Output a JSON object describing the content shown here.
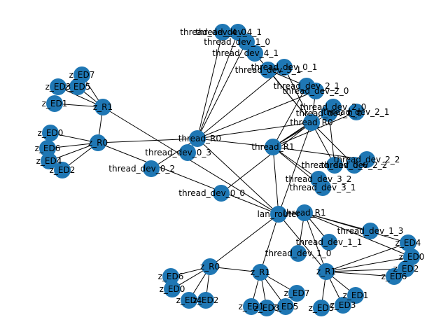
{
  "graph": {
    "node_color": "#1f77b4",
    "edge_color": "#000000",
    "label_color": "#000000",
    "nodes": [
      {
        "id": "A",
        "label": "lan_router"
      },
      {
        "id": "B",
        "label": "z_R0"
      },
      {
        "id": "C",
        "label": "z_R1"
      },
      {
        "id": "D",
        "label": "z_R0"
      },
      {
        "id": "E",
        "label": "z_R1"
      },
      {
        "id": "F",
        "label": "thread_R1"
      },
      {
        "id": "G",
        "label": "thread_R0"
      },
      {
        "id": "H",
        "label": "thread_R1"
      },
      {
        "id": "I",
        "label": "thread_R0"
      },
      {
        "id": "J",
        "label": "z_R1"
      },
      {
        "id": "a1",
        "label": "z_ED7"
      },
      {
        "id": "a2",
        "label": "z_ED3"
      },
      {
        "id": "a3",
        "label": "z_ED5"
      },
      {
        "id": "a4",
        "label": "z_ED1"
      },
      {
        "id": "b1",
        "label": "z_ED0"
      },
      {
        "id": "b2",
        "label": "z_ED6"
      },
      {
        "id": "b3",
        "label": "z_ED4"
      },
      {
        "id": "b4",
        "label": "z_ED2"
      },
      {
        "id": "c1",
        "label": "z_ED6"
      },
      {
        "id": "c2",
        "label": "z_ED0"
      },
      {
        "id": "c3",
        "label": "z_ED4"
      },
      {
        "id": "c4",
        "label": "z_ED2"
      },
      {
        "id": "d1",
        "label": "z_ED7"
      },
      {
        "id": "d2",
        "label": "z_ED1"
      },
      {
        "id": "d3",
        "label": "z_ED3"
      },
      {
        "id": "d4",
        "label": "z_ED5"
      },
      {
        "id": "d5",
        "label": "z_ED1"
      },
      {
        "id": "d6",
        "label": "z_ED5"
      },
      {
        "id": "d7",
        "label": "z_ED3"
      },
      {
        "id": "e1",
        "label": "z_ED4"
      },
      {
        "id": "e2",
        "label": "z_ED0"
      },
      {
        "id": "e3",
        "label": "z_ED2"
      },
      {
        "id": "e4",
        "label": "z_ED6"
      },
      {
        "id": "t1",
        "label": "thread_dev_4_1"
      },
      {
        "id": "t2",
        "label": "thread_dev_4_0"
      },
      {
        "id": "t3",
        "label": "thread_dev_1_0"
      },
      {
        "id": "t4",
        "label": "thread_dev_4_1"
      },
      {
        "id": "t5",
        "label": "thread_dev_3_1"
      },
      {
        "id": "t6",
        "label": "thread_dev_0_1"
      },
      {
        "id": "t7",
        "label": "thread_dev_2_0"
      },
      {
        "id": "t8",
        "label": "thread_dev_2_1"
      },
      {
        "id": "t9",
        "label": "thread_dev_2_0"
      },
      {
        "id": "t10",
        "label": "thread_dev_0_0"
      },
      {
        "id": "t11",
        "label": "thread_dev_2_1"
      },
      {
        "id": "t12",
        "label": "thread_dev_2_2"
      },
      {
        "id": "t13",
        "label": "thread_dev_2_2"
      },
      {
        "id": "t14",
        "label": "thread_dev_0_6"
      },
      {
        "id": "t15",
        "label": "thread_dev_3_2"
      },
      {
        "id": "t16",
        "label": "thread_dev_3_1"
      },
      {
        "id": "t17",
        "label": "thread_dev_1_3"
      },
      {
        "id": "t18",
        "label": "thread_dev_1_1"
      },
      {
        "id": "t19",
        "label": "thread_dev_1_0"
      },
      {
        "id": "t20",
        "label": "thread_dev_0_3"
      },
      {
        "id": "t21",
        "label": "thread_dev_0_2"
      },
      {
        "id": "t22",
        "label": "thread_dev_0_0"
      }
    ],
    "edges": [
      [
        "A",
        "B"
      ],
      [
        "A",
        "C"
      ],
      [
        "A",
        "D"
      ],
      [
        "A",
        "E"
      ],
      [
        "A",
        "F"
      ],
      [
        "A",
        "G"
      ],
      [
        "A",
        "H"
      ],
      [
        "A",
        "I"
      ],
      [
        "A",
        "J"
      ],
      [
        "B",
        "c1"
      ],
      [
        "B",
        "c2"
      ],
      [
        "B",
        "c3"
      ],
      [
        "B",
        "c4"
      ],
      [
        "B",
        "C"
      ],
      [
        "C",
        "d1"
      ],
      [
        "C",
        "d2"
      ],
      [
        "C",
        "d3"
      ],
      [
        "C",
        "d4"
      ],
      [
        "J",
        "d5"
      ],
      [
        "J",
        "d6"
      ],
      [
        "J",
        "d7"
      ],
      [
        "J",
        "e1"
      ],
      [
        "J",
        "e2"
      ],
      [
        "J",
        "e3"
      ],
      [
        "J",
        "e4"
      ],
      [
        "J",
        "F"
      ],
      [
        "E",
        "a1"
      ],
      [
        "E",
        "a2"
      ],
      [
        "E",
        "a3"
      ],
      [
        "E",
        "a4"
      ],
      [
        "E",
        "D"
      ],
      [
        "D",
        "b1"
      ],
      [
        "D",
        "b2"
      ],
      [
        "D",
        "b3"
      ],
      [
        "D",
        "b4"
      ],
      [
        "D",
        "G"
      ],
      [
        "F",
        "t17"
      ],
      [
        "F",
        "t18"
      ],
      [
        "F",
        "t19"
      ],
      [
        "F",
        "e1"
      ],
      [
        "F",
        "e2"
      ],
      [
        "G",
        "t1"
      ],
      [
        "G",
        "t2"
      ],
      [
        "G",
        "t3"
      ],
      [
        "G",
        "t6"
      ],
      [
        "G",
        "t7"
      ],
      [
        "G",
        "t20"
      ],
      [
        "G",
        "t21"
      ],
      [
        "H",
        "t8"
      ],
      [
        "H",
        "t9"
      ],
      [
        "H",
        "t10"
      ],
      [
        "H",
        "t11"
      ],
      [
        "H",
        "t12"
      ],
      [
        "H",
        "t15"
      ],
      [
        "H",
        "t16"
      ],
      [
        "I",
        "t4"
      ],
      [
        "I",
        "t5"
      ],
      [
        "I",
        "t13"
      ],
      [
        "I",
        "t14"
      ],
      [
        "I",
        "t22"
      ],
      [
        "I",
        "t6"
      ],
      [
        "I",
        "t7"
      ],
      [
        "G",
        "H"
      ],
      [
        "H",
        "I"
      ],
      [
        "G",
        "I"
      ],
      [
        "t1",
        "t2"
      ],
      [
        "t3",
        "t4"
      ],
      [
        "t5",
        "t8"
      ],
      [
        "t10",
        "t14"
      ],
      [
        "t12",
        "t13"
      ]
    ]
  }
}
